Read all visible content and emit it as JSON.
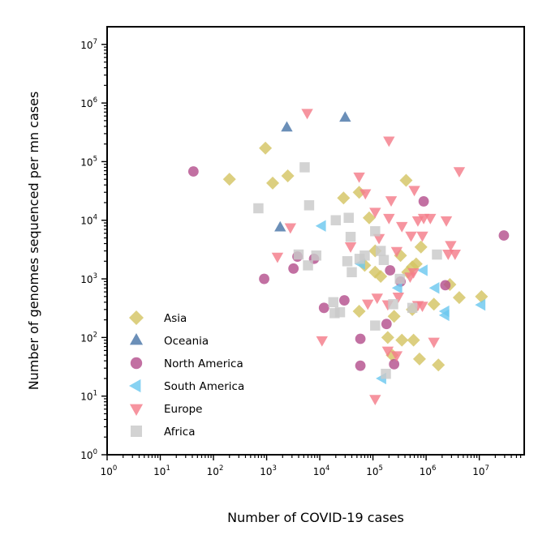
{
  "chart_data": {
    "type": "scatter",
    "title": "",
    "xlabel": "Number of COVID-19 cases",
    "ylabel": "Number of genomes sequenced per mn cases",
    "x_scale": "log",
    "y_scale": "log",
    "xlim": [
      1,
      70000000
    ],
    "ylim": [
      1,
      20000000
    ],
    "grid": false,
    "legend_position": "lower-left",
    "x_ticks": [
      {
        "base": "10",
        "exp": "0"
      },
      {
        "base": "10",
        "exp": "1"
      },
      {
        "base": "10",
        "exp": "2"
      },
      {
        "base": "10",
        "exp": "3"
      },
      {
        "base": "10",
        "exp": "4"
      },
      {
        "base": "10",
        "exp": "5"
      },
      {
        "base": "10",
        "exp": "6"
      },
      {
        "base": "10",
        "exp": "7"
      }
    ],
    "y_ticks": [
      {
        "base": "10",
        "exp": "0"
      },
      {
        "base": "10",
        "exp": "1"
      },
      {
        "base": "10",
        "exp": "2"
      },
      {
        "base": "10",
        "exp": "3"
      },
      {
        "base": "10",
        "exp": "4"
      },
      {
        "base": "10",
        "exp": "5"
      },
      {
        "base": "10",
        "exp": "6"
      },
      {
        "base": "10",
        "exp": "7"
      }
    ],
    "series": [
      {
        "name": "Asia",
        "marker": "diamond",
        "color": "#d4c464",
        "points": [
          [
            200,
            50000
          ],
          [
            950,
            170000
          ],
          [
            1300,
            43000
          ],
          [
            2500,
            57000
          ],
          [
            28000,
            24000
          ],
          [
            55000,
            30000
          ],
          [
            85000,
            11000
          ],
          [
            110000,
            3000
          ],
          [
            420000,
            48000
          ],
          [
            800000,
            3500
          ],
          [
            70000,
            1700
          ],
          [
            110000,
            1300
          ],
          [
            140000,
            1100
          ],
          [
            330000,
            2500
          ],
          [
            450000,
            1300
          ],
          [
            550000,
            1600
          ],
          [
            650000,
            1800
          ],
          [
            550000,
            300
          ],
          [
            1400000,
            370
          ],
          [
            2800000,
            800
          ],
          [
            4200000,
            480
          ],
          [
            11000000,
            500
          ],
          [
            55000,
            280
          ],
          [
            190000,
            100
          ],
          [
            250000,
            230
          ],
          [
            350000,
            90
          ],
          [
            580000,
            90
          ],
          [
            750000,
            43
          ],
          [
            1700000,
            34
          ],
          [
            230000,
            50
          ]
        ]
      },
      {
        "name": "Oceania",
        "marker": "triangle-up",
        "color": "#4a76a8",
        "points": [
          [
            2400,
            380000
          ],
          [
            30000,
            560000
          ],
          [
            1800,
            7500
          ]
        ]
      },
      {
        "name": "North America",
        "marker": "circle",
        "color": "#b5518d",
        "points": [
          [
            42,
            68000
          ],
          [
            900,
            1000
          ],
          [
            3200,
            1500
          ],
          [
            3800,
            2400
          ],
          [
            7800,
            2200
          ],
          [
            12000,
            320
          ],
          [
            29000,
            430
          ],
          [
            58000,
            95
          ],
          [
            58000,
            33
          ],
          [
            180000,
            170
          ],
          [
            210000,
            1400
          ],
          [
            250000,
            35
          ],
          [
            330000,
            900
          ],
          [
            900000,
            21000
          ],
          [
            2300000,
            780
          ],
          [
            29000000,
            5500
          ]
        ]
      },
      {
        "name": "South America",
        "marker": "triangle-left",
        "color": "#6cc8ef",
        "points": [
          [
            11000,
            8000
          ],
          [
            60000,
            1800
          ],
          [
            300000,
            700
          ],
          [
            900000,
            1400
          ],
          [
            1500000,
            700
          ],
          [
            2300000,
            280
          ],
          [
            2300000,
            240
          ],
          [
            11000000,
            360
          ],
          [
            150000,
            20
          ]
        ]
      },
      {
        "name": "Europe",
        "marker": "triangle-down",
        "color": "#f47d8a",
        "points": [
          [
            5800,
            680000
          ],
          [
            2800,
            7600
          ],
          [
            1600,
            2400
          ],
          [
            38000,
            3600
          ],
          [
            55000,
            56000
          ],
          [
            72000,
            29000
          ],
          [
            110000,
            14000
          ],
          [
            130000,
            5000
          ],
          [
            200000,
            230000
          ],
          [
            220000,
            22000
          ],
          [
            200000,
            11000
          ],
          [
            280000,
            3000
          ],
          [
            350000,
            8000
          ],
          [
            520000,
            5500
          ],
          [
            600000,
            33000
          ],
          [
            700000,
            10000
          ],
          [
            900000,
            11000
          ],
          [
            1200000,
            11000
          ],
          [
            2400000,
            10000
          ],
          [
            2900000,
            3800
          ],
          [
            3500000,
            2700
          ],
          [
            4200000,
            69000
          ],
          [
            11000,
            90
          ],
          [
            110000,
            9
          ],
          [
            190000,
            370
          ],
          [
            300000,
            500
          ],
          [
            500000,
            1100
          ],
          [
            580000,
            1300
          ],
          [
            700000,
            360
          ],
          [
            850000,
            350
          ],
          [
            1400000,
            85
          ],
          [
            80000,
            380
          ],
          [
            120000,
            480
          ],
          [
            190000,
            60
          ],
          [
            280000,
            50
          ],
          [
            850000,
            5500
          ],
          [
            2600000,
            2700
          ]
        ]
      },
      {
        "name": "Africa",
        "marker": "square",
        "color": "#c9c9c9",
        "points": [
          [
            700,
            16000
          ],
          [
            5200,
            80000
          ],
          [
            6300,
            18000
          ],
          [
            20000,
            10000
          ],
          [
            35000,
            11000
          ],
          [
            38000,
            5200
          ],
          [
            40000,
            1300
          ],
          [
            33000,
            2000
          ],
          [
            4000,
            2600
          ],
          [
            6000,
            1700
          ],
          [
            8600,
            2500
          ],
          [
            18000,
            400
          ],
          [
            19000,
            260
          ],
          [
            24000,
            270
          ],
          [
            56000,
            2200
          ],
          [
            70000,
            2500
          ],
          [
            110000,
            6500
          ],
          [
            140000,
            3000
          ],
          [
            160000,
            2100
          ],
          [
            240000,
            370
          ],
          [
            320000,
            1000
          ],
          [
            550000,
            320
          ],
          [
            1600000,
            2600
          ],
          [
            110000,
            160
          ],
          [
            175000,
            24
          ]
        ]
      }
    ]
  }
}
